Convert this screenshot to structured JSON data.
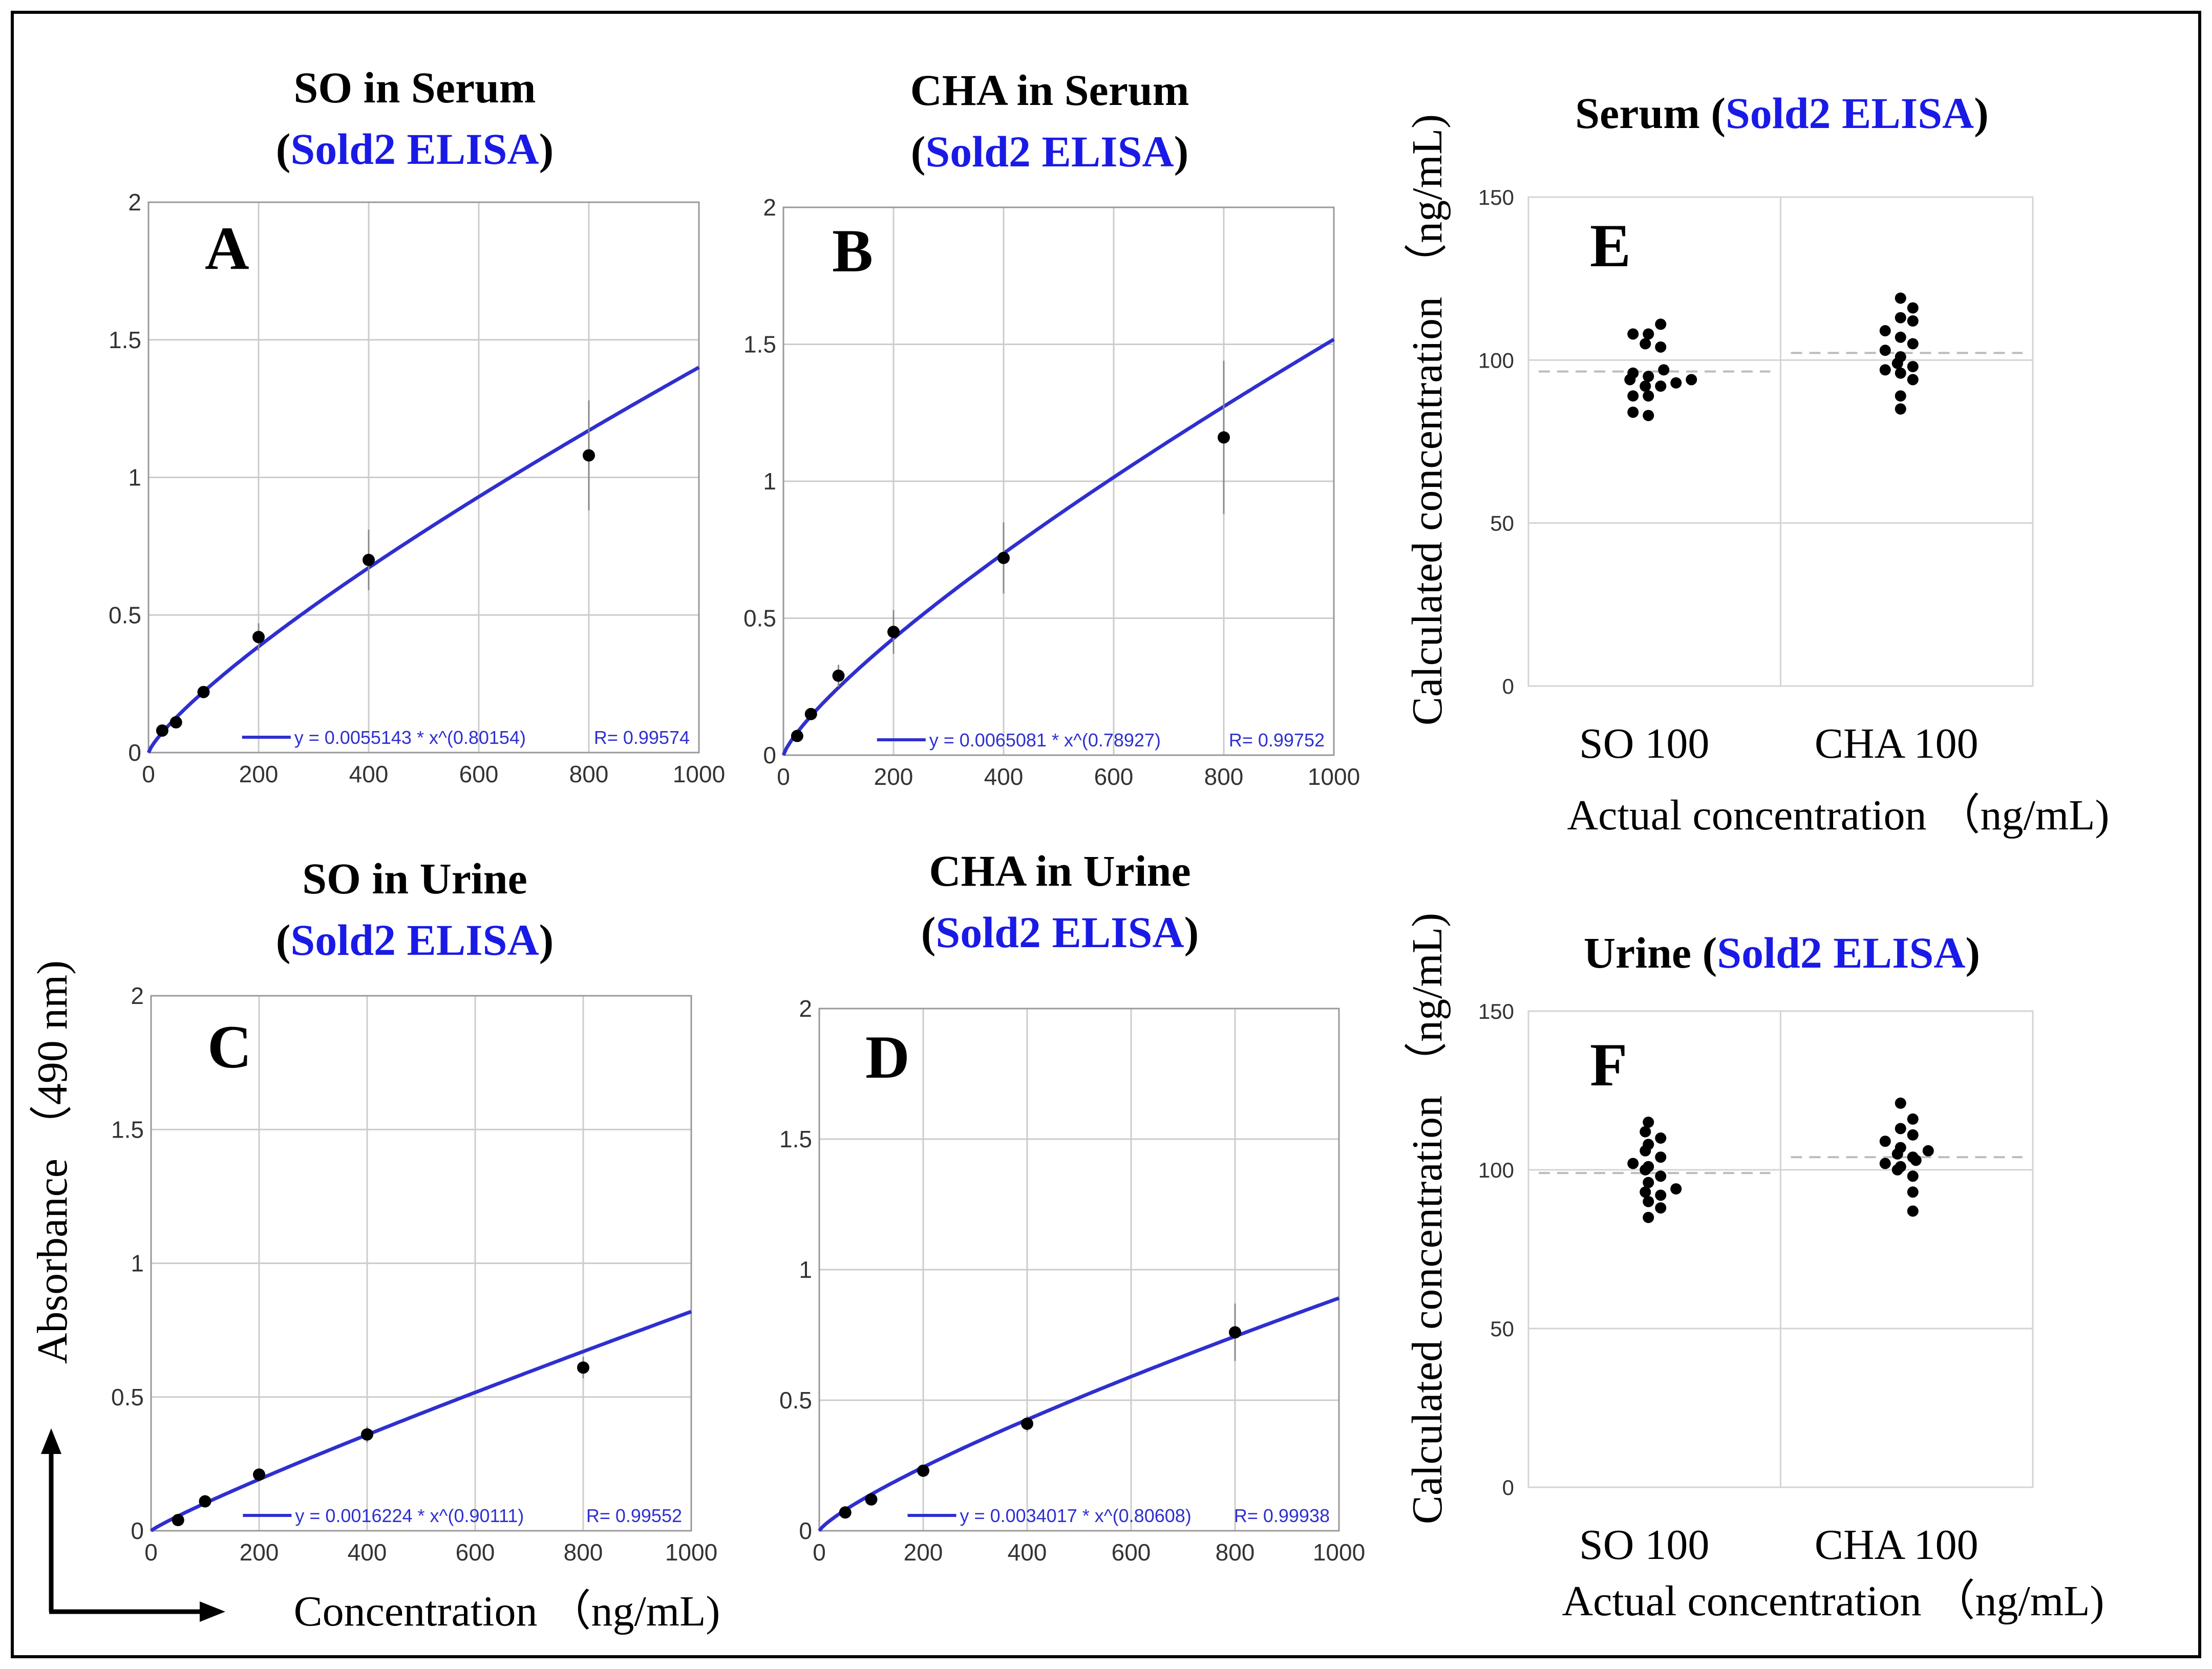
{
  "figure": {
    "y_axis_label": "Absorbance （490 nm)",
    "x_axis_label": "Concentration （ng/mL)",
    "right_y_axis_label": "Calculated concentration （ng/mL)",
    "right_x_axis_label": "Actual concentration （ng/mL)"
  },
  "colors": {
    "curve": "#2f2fd0",
    "title_blue": "#1a1ae6",
    "points": "#000000",
    "grid": "#cccccc"
  },
  "chart_data": [
    {
      "id": "A",
      "type": "scatter",
      "title": "SO in Serum",
      "subtitle": "Sold2 ELISA",
      "x": [
        25,
        50,
        100,
        200,
        400,
        800
      ],
      "y": [
        0.08,
        0.11,
        0.22,
        0.42,
        0.7,
        1.08
      ],
      "error": [
        0.01,
        0.01,
        0.02,
        0.05,
        0.11,
        0.2
      ],
      "fit": {
        "a": 0.0055143,
        "b": 0.80154
      },
      "legend": "y = 0.0055143 * x^(0.80154)",
      "r_label": "R= 0.99574",
      "xlim": [
        0,
        1000
      ],
      "ylim": [
        0,
        2
      ],
      "xticks": [
        "0",
        "200",
        "400",
        "600",
        "800",
        "1000"
      ],
      "yticks": [
        "0",
        "0.5",
        "1",
        "1.5",
        "2"
      ]
    },
    {
      "id": "B",
      "type": "scatter",
      "title": "CHA in Serum",
      "subtitle": "Sold2 ELISA",
      "x": [
        25,
        50,
        100,
        200,
        400,
        800
      ],
      "y": [
        0.07,
        0.15,
        0.29,
        0.45,
        0.72,
        1.16
      ],
      "error": [
        0.01,
        0.02,
        0.04,
        0.08,
        0.13,
        0.28
      ],
      "fit": {
        "a": 0.0065081,
        "b": 0.78927
      },
      "legend": "y = 0.0065081 * x^(0.78927)",
      "r_label": "R= 0.99752",
      "xlim": [
        0,
        1000
      ],
      "ylim": [
        0,
        2
      ],
      "xticks": [
        "0",
        "200",
        "400",
        "600",
        "800",
        "1000"
      ],
      "yticks": [
        "0",
        "0.5",
        "1",
        "1.5",
        "2"
      ]
    },
    {
      "id": "C",
      "type": "scatter",
      "title": "SO in Urine",
      "subtitle": "Sold2 ELISA",
      "x": [
        50,
        100,
        200,
        400,
        800
      ],
      "y": [
        0.04,
        0.11,
        0.21,
        0.36,
        0.61
      ],
      "error": [
        0.01,
        0.01,
        0.02,
        0.03,
        0.04
      ],
      "fit": {
        "a": 0.0016224,
        "b": 0.90111
      },
      "legend": "y = 0.0016224 * x^(0.90111)",
      "r_label": "R= 0.99552",
      "xlim": [
        0,
        1000
      ],
      "ylim": [
        0,
        2
      ],
      "xticks": [
        "0",
        "200",
        "400",
        "600",
        "800",
        "1000"
      ],
      "yticks": [
        "0",
        "0.5",
        "1",
        "1.5",
        "2"
      ]
    },
    {
      "id": "D",
      "type": "scatter",
      "title": "CHA in Urine",
      "subtitle": "Sold2 ELISA",
      "x": [
        50,
        100,
        200,
        400,
        800
      ],
      "y": [
        0.07,
        0.12,
        0.23,
        0.41,
        0.76
      ],
      "error": [
        0.01,
        0.01,
        0.02,
        0.03,
        0.11
      ],
      "fit": {
        "a": 0.0034017,
        "b": 0.80608
      },
      "legend": "y = 0.0034017 * x^(0.80608)",
      "r_label": "R= 0.99938",
      "xlim": [
        0,
        1000
      ],
      "ylim": [
        0,
        2
      ],
      "xticks": [
        "0",
        "200",
        "400",
        "600",
        "800",
        "1000"
      ],
      "yticks": [
        "0",
        "0.5",
        "1",
        "1.5",
        "2"
      ]
    },
    {
      "id": "E",
      "type": "scatter",
      "title": "Serum",
      "subtitle": "Sold2 ELISA",
      "categories": [
        "SO 100",
        "CHA 100"
      ],
      "points": [
        [
          83,
          84,
          89,
          89,
          92,
          92,
          93,
          94,
          94,
          95,
          96,
          97,
          104,
          105,
          108,
          108,
          111
        ],
        [
          85,
          89,
          94,
          96,
          97,
          98,
          99,
          101,
          103,
          105,
          107,
          109,
          112,
          113,
          116,
          119
        ]
      ],
      "means": [
        96.5,
        102.2
      ],
      "ylim": [
        0,
        150
      ],
      "yticks": [
        "0",
        "50",
        "100",
        "150"
      ]
    },
    {
      "id": "F",
      "type": "scatter",
      "title": "Urine",
      "subtitle": "Sold2 ELISA",
      "categories": [
        "SO 100",
        "CHA 100"
      ],
      "points": [
        [
          85,
          88,
          90,
          92,
          93,
          94,
          96,
          98,
          100,
          101,
          102,
          104,
          106,
          108,
          110,
          112,
          115
        ],
        [
          87,
          93,
          98,
          100,
          101,
          102,
          103,
          104,
          105,
          106,
          107,
          109,
          111,
          113,
          116,
          121
        ]
      ],
      "means": [
        99.0,
        104.0
      ],
      "ylim": [
        0,
        150
      ],
      "yticks": [
        "0",
        "50",
        "100",
        "150"
      ]
    }
  ]
}
